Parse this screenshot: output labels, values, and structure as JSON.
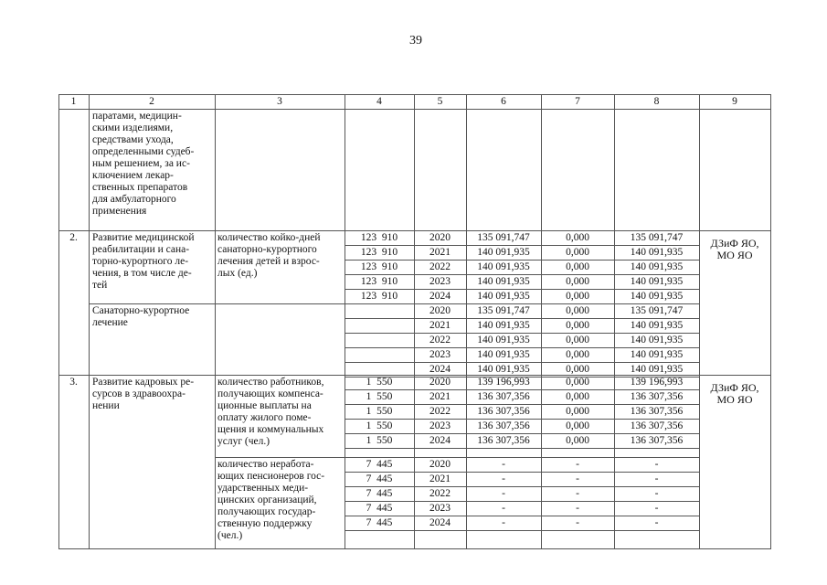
{
  "page_number": "39",
  "header": [
    "1",
    "2",
    "3",
    "4",
    "5",
    "6",
    "7",
    "8",
    "9"
  ],
  "continuation": {
    "name": "паратами, медицин-\nскими изделиями,\nсредствами ухода,\nопределенными судеб-\nным решением, за ис-\nключением лекар-\nственных препаратов\nдля амбулаторного\nприменения"
  },
  "sections": [
    {
      "number": "2.",
      "name": "Развитие медицинской\nреабилитации и сана-\nторно-курортного ле-\nчения, в том числе де-\nтей",
      "executor": "ДЗиФ ЯО,\nМО ЯО",
      "blocks": [
        {
          "indicator": "количество койко-дней\nсанаторно-курортного\nлечения детей и взрос-\nлых (ед.)",
          "rows": [
            {
              "target": "123  910",
              "year": "2020",
              "total": "135 091,747",
              "col7": "0,000",
              "col8": "135 091,747"
            },
            {
              "target": "123  910",
              "year": "2021",
              "total": "140 091,935",
              "col7": "0,000",
              "col8": "140 091,935"
            },
            {
              "target": "123  910",
              "year": "2022",
              "total": "140 091,935",
              "col7": "0,000",
              "col8": "140 091,935"
            },
            {
              "target": "123  910",
              "year": "2023",
              "total": "140 091,935",
              "col7": "0,000",
              "col8": "140 091,935"
            },
            {
              "target": "123  910",
              "year": "2024",
              "total": "140 091,935",
              "col7": "0,000",
              "col8": "140 091,935"
            }
          ]
        },
        {
          "subname": "Санаторно-курортное\nлечение",
          "indicator": "",
          "rows": [
            {
              "target": "",
              "year": "2020",
              "total": "135 091,747",
              "col7": "0,000",
              "col8": "135 091,747"
            },
            {
              "target": "",
              "year": "2021",
              "total": "140 091,935",
              "col7": "0,000",
              "col8": "140 091,935"
            },
            {
              "target": "",
              "year": "2022",
              "total": "140 091,935",
              "col7": "0,000",
              "col8": "140 091,935"
            },
            {
              "target": "",
              "year": "2023",
              "total": "140 091,935",
              "col7": "0,000",
              "col8": "140 091,935"
            },
            {
              "target": "",
              "year": "2024",
              "total": "140 091,935",
              "col7": "0,000",
              "col8": "140 091,935"
            }
          ]
        }
      ]
    },
    {
      "number": "3.",
      "name": "Развитие кадровых ре-\nсурсов в здравоохра-\nнении",
      "executor": "ДЗиФ ЯО,\nМО ЯО",
      "blocks": [
        {
          "indicator": "количество работников,\nполучающих компенса-\nционные выплаты на\nоплату жилого поме-\nщения и коммунальных\nуслуг (чел.)",
          "rows": [
            {
              "target": "1  550",
              "year": "2020",
              "total": "139 196,993",
              "col7": "0,000",
              "col8": "139 196,993"
            },
            {
              "target": "1  550",
              "year": "2021",
              "total": "136 307,356",
              "col7": "0,000",
              "col8": "136 307,356"
            },
            {
              "target": "1  550",
              "year": "2022",
              "total": "136 307,356",
              "col7": "0,000",
              "col8": "136 307,356"
            },
            {
              "target": "1  550",
              "year": "2023",
              "total": "136 307,356",
              "col7": "0,000",
              "col8": "136 307,356"
            },
            {
              "target": "1  550",
              "year": "2024",
              "total": "136 307,356",
              "col7": "0,000",
              "col8": "136 307,356"
            }
          ]
        },
        {
          "indicator": "количество неработа-\nющих пенсионеров гос-\nударственных меди-\nцинских организаций,\nполучающих государ-\nственную поддержку\n(чел.)",
          "rows": [
            {
              "target": "7  445",
              "year": "2020",
              "total": "-",
              "col7": "-",
              "col8": "-"
            },
            {
              "target": "7  445",
              "year": "2021",
              "total": "-",
              "col7": "-",
              "col8": "-"
            },
            {
              "target": "7  445",
              "year": "2022",
              "total": "-",
              "col7": "-",
              "col8": "-"
            },
            {
              "target": "7  445",
              "year": "2023",
              "total": "-",
              "col7": "-",
              "col8": "-"
            },
            {
              "target": "7  445",
              "year": "2024",
              "total": "-",
              "col7": "-",
              "col8": "-"
            }
          ]
        }
      ]
    }
  ]
}
